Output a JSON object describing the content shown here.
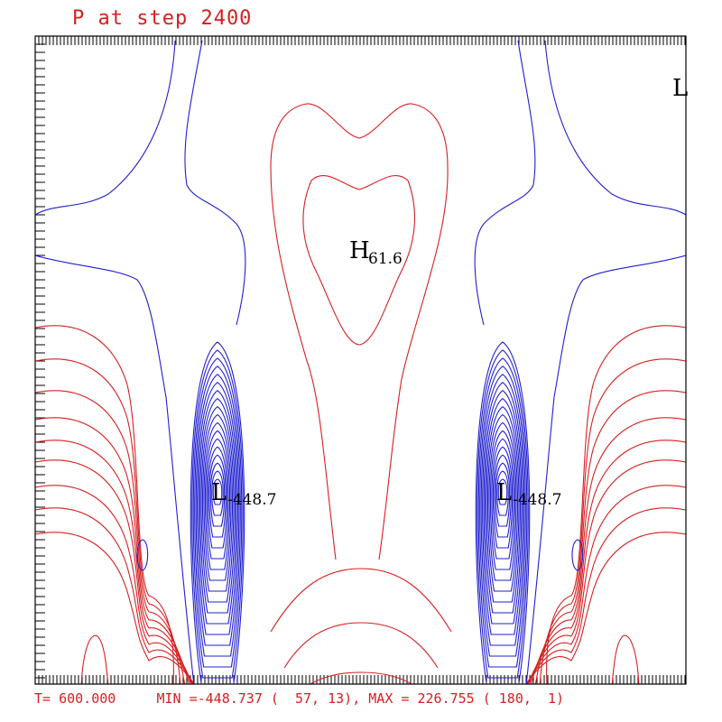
{
  "header": {
    "title": "P at step 2400"
  },
  "footer": {
    "time_label": "T= 600.000",
    "minmax_label": "MIN =-448.737 (  57, 13), MAX = 226.755 ( 180,  1)"
  },
  "colors": {
    "positive": "#d62020",
    "negative": "#2020d0",
    "frame": "#000000"
  },
  "chart_data": {
    "type": "contour",
    "variable": "P",
    "step": 2400,
    "time": 600.0,
    "min": {
      "value": -448.737,
      "i": 57,
      "j": 13
    },
    "max": {
      "value": 226.755,
      "i": 180,
      "j": 1
    },
    "extrema_labels": [
      {
        "kind": "H",
        "value": "61.6"
      },
      {
        "kind": "L",
        "value": "-448.7"
      },
      {
        "kind": "L",
        "value": "-448.7"
      },
      {
        "kind": "L",
        "value": ""
      }
    ],
    "contour_colors": {
      "positive": "red",
      "negative": "blue"
    }
  }
}
